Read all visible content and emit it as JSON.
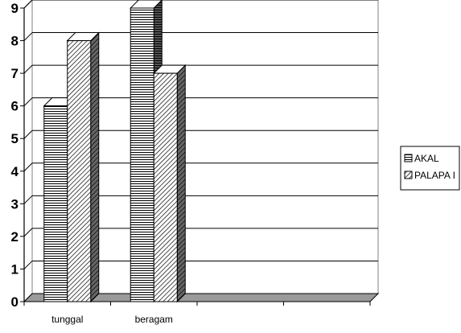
{
  "chart_data": {
    "type": "bar",
    "categories": [
      "tunggal",
      "beragam",
      "",
      ""
    ],
    "series": [
      {
        "name": "AKAL",
        "values": [
          6,
          9,
          null,
          null
        ],
        "pattern": "horizontal-lines"
      },
      {
        "name": "PALAPA I",
        "values": [
          8,
          7,
          null,
          null
        ],
        "pattern": "diagonal-lines"
      }
    ],
    "yticks": [
      0,
      1,
      2,
      3,
      4,
      5,
      6,
      7,
      8,
      9
    ],
    "ylim": [
      0,
      9
    ],
    "grid": true,
    "legend_position": "right",
    "three_d": true
  }
}
